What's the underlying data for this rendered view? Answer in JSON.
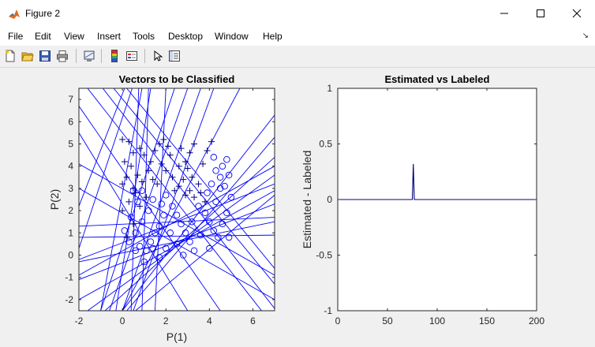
{
  "window": {
    "title": "Figure 2"
  },
  "menu": [
    "File",
    "Edit",
    "View",
    "Insert",
    "Tools",
    "Desktop",
    "Window",
    "Help"
  ],
  "toolbar": [
    "new-figure-icon",
    "open-file-icon",
    "save-icon",
    "print-icon",
    "link-plot-icon",
    "insert-colorbar-icon",
    "insert-legend-icon",
    "edit-plot-arrow-icon",
    "property-inspector-icon"
  ],
  "colors": {
    "plot_blue": "#0000ff",
    "line_blue": "#00007f",
    "axes_bg": "#ffffff",
    "figure_bg": "#f0f0f0"
  },
  "chart_data": [
    {
      "type": "scatter",
      "title": "Vectors to be Classified",
      "xlabel": "P(1)",
      "ylabel": "P(2)",
      "xlim": [
        -2,
        7
      ],
      "ylim": [
        -2.5,
        7.5
      ],
      "xticks": [
        "-2",
        "0",
        "2",
        "4",
        "6"
      ],
      "yticks": [
        "-2",
        "-1",
        "0",
        "1",
        "2",
        "3",
        "4",
        "5",
        "6",
        "7"
      ],
      "series": [
        {
          "marker": "+",
          "points": [
            [
              0.0,
              5.2
            ],
            [
              0.3,
              5.1
            ],
            [
              0.5,
              4.6
            ],
            [
              0.1,
              4.2
            ],
            [
              0.4,
              4.0
            ],
            [
              0.2,
              3.5
            ],
            [
              0.0,
              3.2
            ],
            [
              0.5,
              3.0
            ],
            [
              0.8,
              4.8
            ],
            [
              1.0,
              4.5
            ],
            [
              1.3,
              4.2
            ],
            [
              1.5,
              4.7
            ],
            [
              1.7,
              5.0
            ],
            [
              1.2,
              3.8
            ],
            [
              0.9,
              3.3
            ],
            [
              0.6,
              2.8
            ],
            [
              0.3,
              2.4
            ],
            [
              0.0,
              2.0
            ],
            [
              0.5,
              1.4
            ],
            [
              0.2,
              0.8
            ],
            [
              1.9,
              5.2
            ],
            [
              2.1,
              4.9
            ],
            [
              2.2,
              4.5
            ],
            [
              1.8,
              4.1
            ],
            [
              2.0,
              3.8
            ],
            [
              2.3,
              3.5
            ],
            [
              1.6,
              3.2
            ],
            [
              2.6,
              3.1
            ],
            [
              2.8,
              3.4
            ],
            [
              2.6,
              4.0
            ],
            [
              2.9,
              4.2
            ],
            [
              3.1,
              4.6
            ],
            [
              3.3,
              5.0
            ],
            [
              2.7,
              4.8
            ],
            [
              3.0,
              3.9
            ],
            [
              3.2,
              3.5
            ],
            [
              3.5,
              3.2
            ],
            [
              3.7,
              4.1
            ],
            [
              3.9,
              4.7
            ],
            [
              4.1,
              5.1
            ],
            [
              3.6,
              2.8
            ],
            [
              3.3,
              2.6
            ],
            [
              3.8,
              2.4
            ],
            [
              3.1,
              2.9
            ],
            [
              2.4,
              2.9
            ],
            [
              2.9,
              2.7
            ],
            [
              0.8,
              2.2
            ],
            [
              1.1,
              2.6
            ],
            [
              0.7,
              3.6
            ],
            [
              1.4,
              3.4
            ]
          ]
        },
        {
          "marker": "o",
          "points": [
            [
              1.8,
              2.3
            ],
            [
              1.9,
              1.8
            ],
            [
              1.7,
              1.3
            ],
            [
              1.5,
              1.0
            ],
            [
              1.3,
              0.6
            ],
            [
              1.1,
              0.2
            ],
            [
              0.8,
              0.4
            ],
            [
              0.6,
              1.0
            ],
            [
              0.9,
              1.5
            ],
            [
              1.2,
              2.0
            ],
            [
              1.4,
              2.5
            ],
            [
              2.0,
              2.7
            ],
            [
              2.3,
              2.2
            ],
            [
              2.5,
              1.8
            ],
            [
              2.7,
              1.4
            ],
            [
              2.9,
              1.0
            ],
            [
              3.1,
              0.6
            ],
            [
              3.3,
              0.2
            ],
            [
              2.8,
              0.0
            ],
            [
              2.5,
              0.5
            ],
            [
              2.2,
              1.0
            ],
            [
              2.0,
              0.3
            ],
            [
              1.7,
              -0.1
            ],
            [
              1.4,
              0.3
            ],
            [
              1.0,
              -0.3
            ],
            [
              0.6,
              0.2
            ],
            [
              0.3,
              0.6
            ],
            [
              0.1,
              1.1
            ],
            [
              0.4,
              1.7
            ],
            [
              0.7,
              2.4
            ],
            [
              0.5,
              2.9
            ],
            [
              0.9,
              2.9
            ],
            [
              3.5,
              2.2
            ],
            [
              3.8,
              1.9
            ],
            [
              4.0,
              1.5
            ],
            [
              4.2,
              1.1
            ],
            [
              4.4,
              0.8
            ],
            [
              4.6,
              1.4
            ],
            [
              4.8,
              1.9
            ],
            [
              5.0,
              2.6
            ],
            [
              4.7,
              3.1
            ],
            [
              4.5,
              3.5
            ],
            [
              4.8,
              4.3
            ],
            [
              4.6,
              4.0
            ],
            [
              4.3,
              3.8
            ],
            [
              4.1,
              3.2
            ],
            [
              3.9,
              2.8
            ],
            [
              4.3,
              2.4
            ],
            [
              3.6,
              0.9
            ],
            [
              4.0,
              0.3
            ],
            [
              4.9,
              0.8
            ],
            [
              4.5,
              3.0
            ],
            [
              4.9,
              3.6
            ],
            [
              4.2,
              4.4
            ],
            [
              3.2,
              1.5
            ]
          ]
        }
      ],
      "lines": [
        [
          [
            0.1,
            7.5
          ],
          [
            -2,
            2.2
          ]
        ],
        [
          [
            0.45,
            7.5
          ],
          [
            -2,
            0.3
          ]
        ],
        [
          [
            0.9,
            7.5
          ],
          [
            -1.0,
            -2.5
          ]
        ],
        [
          [
            1.3,
            7.5
          ],
          [
            -0.3,
            -2.5
          ]
        ],
        [
          [
            0.75,
            7.5
          ],
          [
            0.4,
            -2.5
          ]
        ],
        [
          [
            1.2,
            7.5
          ],
          [
            0.9,
            -2.5
          ]
        ],
        [
          [
            2.4,
            7.5
          ],
          [
            -1.0,
            -2.5
          ]
        ],
        [
          [
            3.0,
            7.5
          ],
          [
            -0.6,
            -2.5
          ]
        ],
        [
          [
            3.6,
            7.5
          ],
          [
            0.0,
            -2.5
          ]
        ],
        [
          [
            4.2,
            7.5
          ],
          [
            0.5,
            -2.5
          ]
        ],
        [
          [
            5.4,
            7.5
          ],
          [
            0.0,
            -2.5
          ]
        ],
        [
          [
            7,
            6.3
          ],
          [
            0.0,
            -2.5
          ]
        ],
        [
          [
            7,
            5.3
          ],
          [
            0.2,
            -2.5
          ]
        ],
        [
          [
            7,
            4.4
          ],
          [
            -0.8,
            -2.5
          ]
        ],
        [
          [
            7,
            3.6
          ],
          [
            -1.6,
            -2.5
          ]
        ],
        [
          [
            7,
            2.9
          ],
          [
            -2,
            -2.0
          ]
        ],
        [
          [
            7,
            2.3
          ],
          [
            -2,
            -1.1
          ]
        ],
        [
          [
            7,
            1.5
          ],
          [
            -2,
            -0.3
          ]
        ],
        [
          [
            7,
            0.9
          ],
          [
            -2,
            0.8
          ]
        ],
        [
          [
            7,
            3.2
          ],
          [
            -2,
            -0.2
          ]
        ],
        [
          [
            7,
            4.0
          ],
          [
            -2,
            -0.9
          ]
        ],
        [
          [
            -1.6,
            7.5
          ],
          [
            6.4,
            -2.5
          ]
        ],
        [
          [
            -0.9,
            7.5
          ],
          [
            7,
            -2.4
          ]
        ],
        [
          [
            -0.4,
            7.5
          ],
          [
            7,
            -1.3
          ]
        ],
        [
          [
            0.2,
            7.5
          ],
          [
            7,
            -0.6
          ]
        ],
        [
          [
            -2,
            4.1
          ],
          [
            7,
            -0.9
          ]
        ],
        [
          [
            -2,
            3.0
          ],
          [
            7,
            -2.0
          ]
        ],
        [
          [
            -2,
            5.5
          ],
          [
            3.0,
            -2.5
          ]
        ],
        [
          [
            -2,
            6.7
          ],
          [
            4.5,
            -2.5
          ]
        ],
        [
          [
            2.0,
            7.5
          ],
          [
            1.5,
            -2.5
          ]
        ],
        [
          [
            7,
            2.7
          ],
          [
            0.6,
            -2.5
          ]
        ],
        [
          [
            -2,
            1.3
          ],
          [
            7,
            1.7
          ]
        ]
      ]
    },
    {
      "type": "line",
      "title": "Estimated vs Labeled",
      "xlabel": "",
      "ylabel": "Estimated - Labeled",
      "xlim": [
        0,
        200
      ],
      "ylim": [
        -1,
        1
      ],
      "xticks": [
        "0",
        "50",
        "100",
        "150",
        "200"
      ],
      "yticks": [
        "-1",
        "-0.5",
        "0",
        "0.5",
        "1"
      ],
      "x": [
        0,
        75,
        76,
        77,
        200
      ],
      "y": [
        0,
        0,
        0.32,
        0,
        0
      ]
    }
  ]
}
